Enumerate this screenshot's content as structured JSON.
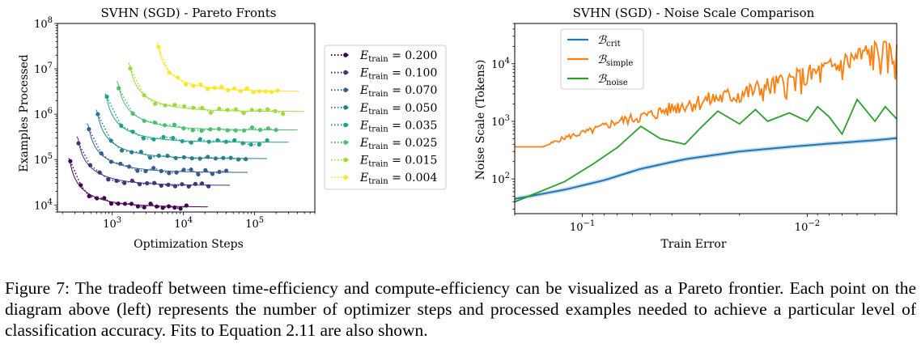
{
  "caption": {
    "text": "Figure 7: The tradeoff between time-efficiency and compute-efficiency can be visualized as a Pareto frontier. Each point on the diagram above (left) represents the number of optimizer steps and processed examples needed to achieve a particular level of classification accuracy. Fits to Equation 2.11 are also shown."
  },
  "chart_data": [
    {
      "type": "scatter",
      "title": "SVHN (SGD) - Pareto Fronts",
      "xlabel": "Optimization Steps",
      "ylabel": "Examples Processed",
      "xscale": "log",
      "yscale": "log",
      "xlim": [
        170,
        700000
      ],
      "ylim": [
        7000,
        100000000
      ],
      "x_tick_labels": [
        "10^3",
        "10^4",
        "10^5"
      ],
      "y_tick_labels": [
        "10^4",
        "10^5",
        "10^6",
        "10^7",
        "10^8"
      ],
      "legend_position": "right (outside)",
      "series": [
        {
          "name": "E_train = 0.200",
          "color": "#440154",
          "Smin": 230,
          "Emin": 9000,
          "xmax": 22000
        },
        {
          "name": "E_train = 0.100",
          "color": "#46327e",
          "Smin": 300,
          "Emin": 27000,
          "xmax": 45000
        },
        {
          "name": "E_train = 0.070",
          "color": "#365c8d",
          "Smin": 420,
          "Emin": 52000,
          "xmax": 80000
        },
        {
          "name": "E_train = 0.050",
          "color": "#277f8e",
          "Smin": 560,
          "Emin": 105000,
          "xmax": 150000
        },
        {
          "name": "E_train = 0.035",
          "color": "#1fa187",
          "Smin": 750,
          "Emin": 240000,
          "xmax": 300000
        },
        {
          "name": "E_train = 0.025",
          "color": "#4ac16d",
          "Smin": 1100,
          "Emin": 450000,
          "xmax": 400000
        },
        {
          "name": "E_train = 0.015",
          "color": "#a0da39",
          "Smin": 1600,
          "Emin": 1150000,
          "xmax": 500000
        },
        {
          "name": "E_train = 0.004",
          "color": "#fde725",
          "Smin": 4000,
          "Emin": 3200000,
          "xmax": 420000
        }
      ]
    },
    {
      "type": "line",
      "title": "SVHN (SGD) - Noise Scale Comparison",
      "xlabel": "Train Error",
      "ylabel": "Noise Scale (Tokens)",
      "xscale": "log (reversed)",
      "yscale": "log",
      "xlim": [
        0.2,
        0.004
      ],
      "ylim": [
        25,
        50000
      ],
      "x_tick_labels": [
        "10^-1",
        "10^-2"
      ],
      "y_tick_labels": [
        "10^2",
        "10^3",
        "10^4"
      ],
      "legend_position": "upper left",
      "series": [
        {
          "name": "B_crit",
          "color": "#1f77b4",
          "x": [
            0.2,
            0.12,
            0.08,
            0.055,
            0.035,
            0.02,
            0.012,
            0.008,
            0.005,
            0.004
          ],
          "y": [
            45,
            65,
            95,
            150,
            220,
            300,
            360,
            410,
            470,
            510
          ]
        },
        {
          "name": "B_simple",
          "color": "#ff7f0e",
          "x": [
            0.2,
            0.15,
            0.12,
            0.09,
            0.07,
            0.05,
            0.035,
            0.02,
            0.012,
            0.008,
            0.006,
            0.005,
            0.004
          ],
          "y": [
            360,
            360,
            520,
            700,
            1000,
            1300,
            2000,
            3000,
            5000,
            8000,
            13000,
            16000,
            14000
          ]
        },
        {
          "name": "B_noise",
          "color": "#2ca02c",
          "x": [
            0.2,
            0.12,
            0.09,
            0.07,
            0.055,
            0.045,
            0.035,
            0.03,
            0.025,
            0.02,
            0.017,
            0.015,
            0.012,
            0.01,
            0.009,
            0.008,
            0.007,
            0.006,
            0.005,
            0.0045,
            0.004
          ],
          "y": [
            40,
            90,
            180,
            350,
            820,
            500,
            400,
            750,
            1500,
            900,
            1600,
            1000,
            1400,
            1000,
            1800,
            1200,
            600,
            2400,
            1000,
            1800,
            1100
          ]
        }
      ]
    }
  ]
}
